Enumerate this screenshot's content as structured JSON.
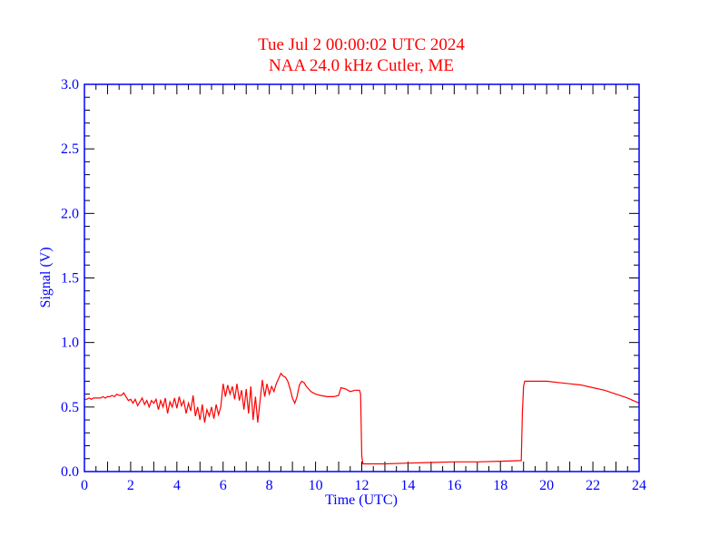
{
  "chart_data": {
    "type": "line",
    "title": "Tue Jul 2 00:00:02 UTC 2024",
    "subtitle": "NAA 24.0 kHz Cutler, ME",
    "xlabel": "Time (UTC)",
    "ylabel": "Signal (V)",
    "xlim": [
      0,
      24
    ],
    "ylim": [
      0,
      3.0
    ],
    "xticks": [
      "0",
      "2",
      "4",
      "6",
      "8",
      "10",
      "12",
      "14",
      "16",
      "18",
      "20",
      "22",
      "24"
    ],
    "yticks": [
      "0.0",
      "0.5",
      "1.0",
      "1.5",
      "2.0",
      "2.5",
      "3.0"
    ],
    "grid": false,
    "colors": {
      "line": "#ff0000",
      "axes": "#0000ff",
      "ticks": "#000000",
      "title": "#ff0000"
    },
    "series": [
      {
        "name": "NAA",
        "x": [
          0,
          0.1,
          0.2,
          0.3,
          0.4,
          0.5,
          0.6,
          0.7,
          0.8,
          0.9,
          1.0,
          1.1,
          1.2,
          1.3,
          1.4,
          1.5,
          1.6,
          1.7,
          1.8,
          1.9,
          2.0,
          2.1,
          2.2,
          2.3,
          2.4,
          2.5,
          2.6,
          2.7,
          2.8,
          2.9,
          3.0,
          3.1,
          3.2,
          3.3,
          3.4,
          3.5,
          3.6,
          3.7,
          3.8,
          3.9,
          4.0,
          4.1,
          4.2,
          4.3,
          4.4,
          4.5,
          4.6,
          4.7,
          4.8,
          4.9,
          5.0,
          5.1,
          5.2,
          5.3,
          5.4,
          5.5,
          5.6,
          5.7,
          5.8,
          5.9,
          6.0,
          6.1,
          6.2,
          6.3,
          6.4,
          6.5,
          6.6,
          6.7,
          6.8,
          6.9,
          7.0,
          7.1,
          7.2,
          7.3,
          7.4,
          7.5,
          7.6,
          7.7,
          7.8,
          7.9,
          8.0,
          8.1,
          8.2,
          8.3,
          8.4,
          8.5,
          8.6,
          8.7,
          8.8,
          8.9,
          9.0,
          9.1,
          9.2,
          9.3,
          9.4,
          9.5,
          9.6,
          9.7,
          9.8,
          9.9,
          10.0,
          10.2,
          10.5,
          10.8,
          11.0,
          11.1,
          11.3,
          11.5,
          11.7,
          11.9,
          11.95,
          12.0,
          12.05,
          12.5,
          13,
          14,
          15,
          16,
          17,
          18,
          18.9,
          18.95,
          19.0,
          19.05,
          19.5,
          20,
          20.5,
          21,
          21.5,
          22,
          22.5,
          23,
          23.5,
          24
        ],
        "y": [
          0.56,
          0.56,
          0.57,
          0.56,
          0.57,
          0.57,
          0.57,
          0.57,
          0.58,
          0.57,
          0.58,
          0.58,
          0.59,
          0.58,
          0.6,
          0.59,
          0.59,
          0.61,
          0.58,
          0.55,
          0.56,
          0.53,
          0.56,
          0.51,
          0.54,
          0.57,
          0.52,
          0.55,
          0.5,
          0.55,
          0.53,
          0.56,
          0.48,
          0.55,
          0.5,
          0.57,
          0.45,
          0.54,
          0.5,
          0.57,
          0.49,
          0.58,
          0.51,
          0.55,
          0.45,
          0.53,
          0.47,
          0.59,
          0.43,
          0.5,
          0.4,
          0.52,
          0.38,
          0.48,
          0.43,
          0.5,
          0.41,
          0.52,
          0.44,
          0.5,
          0.68,
          0.58,
          0.67,
          0.6,
          0.66,
          0.56,
          0.68,
          0.55,
          0.63,
          0.48,
          0.64,
          0.45,
          0.66,
          0.4,
          0.58,
          0.38,
          0.55,
          0.71,
          0.58,
          0.68,
          0.6,
          0.66,
          0.62,
          0.68,
          0.72,
          0.76,
          0.74,
          0.73,
          0.7,
          0.64,
          0.57,
          0.53,
          0.58,
          0.67,
          0.7,
          0.69,
          0.66,
          0.64,
          0.62,
          0.61,
          0.6,
          0.59,
          0.58,
          0.58,
          0.59,
          0.65,
          0.64,
          0.62,
          0.63,
          0.63,
          0.6,
          0.12,
          0.06,
          0.06,
          0.06,
          0.065,
          0.07,
          0.075,
          0.075,
          0.08,
          0.085,
          0.45,
          0.66,
          0.7,
          0.7,
          0.7,
          0.69,
          0.68,
          0.67,
          0.65,
          0.63,
          0.6,
          0.57,
          0.53
        ]
      }
    ]
  }
}
